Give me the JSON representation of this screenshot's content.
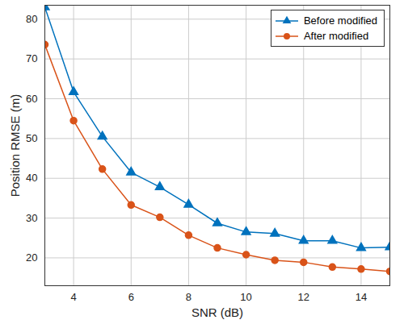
{
  "chart_data": {
    "type": "line",
    "x_label": "SNR (dB)",
    "y_label": "Position RMSE (m)",
    "x": [
      3,
      4,
      5,
      6,
      7,
      8,
      9,
      10,
      11,
      12,
      13,
      14,
      15
    ],
    "series": [
      {
        "name": "Before modified",
        "color": "#0072BD",
        "marker": "triangle",
        "values": [
          83,
          61.7,
          50.5,
          41.5,
          37.8,
          33.4,
          28.7,
          26.5,
          26.1,
          24.3,
          24.3,
          22.5,
          22.7
        ]
      },
      {
        "name": "After modified",
        "color": "#D95319",
        "marker": "circle",
        "values": [
          73.6,
          54.5,
          42.3,
          33.3,
          30.2,
          25.7,
          22.5,
          20.8,
          19.4,
          18.9,
          17.7,
          17.2,
          16.6
        ]
      }
    ],
    "xlim": [
      3,
      15
    ],
    "xticks": [
      4,
      6,
      8,
      10,
      12,
      14
    ],
    "ylim": [
      13,
      83.5
    ],
    "yticks": [
      20,
      30,
      40,
      50,
      60,
      70,
      80
    ],
    "grid": true,
    "legend": "top-right"
  }
}
